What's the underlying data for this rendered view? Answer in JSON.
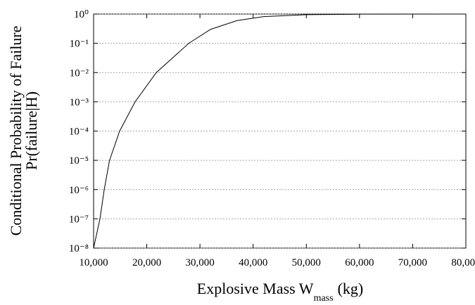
{
  "chart_data": {
    "type": "line",
    "ylabel": [
      "Conditional Probability of Failure",
      "Pr(failure|H)"
    ],
    "xlabel": [
      "Explosive Mass W",
      "mass",
      "(kg)"
    ],
    "x": [
      10000,
      11200,
      12000,
      13000,
      14900,
      17800,
      21800,
      27900,
      32000,
      37000,
      42000,
      50000,
      60000,
      80000
    ],
    "series": [
      {
        "color": "#000000",
        "values": [
          1e-08,
          1e-07,
          1e-06,
          1e-05,
          0.0001,
          0.001,
          0.01,
          0.1,
          0.3,
          0.6,
          0.82,
          0.95,
          0.99,
          1
        ]
      }
    ],
    "xlim": [
      10000,
      80000
    ],
    "xticks": [
      {
        "value": 10000,
        "label": "10,000"
      },
      {
        "value": 20000,
        "label": "20,000"
      },
      {
        "value": 30000,
        "label": "30,000"
      },
      {
        "value": 40000,
        "label": "40,000"
      },
      {
        "value": 50000,
        "label": "50,000"
      },
      {
        "value": 60000,
        "label": "60,000"
      },
      {
        "value": 70000,
        "label": "70,000"
      },
      {
        "value": 80000,
        "label": "80,000"
      }
    ],
    "ylim": [
      1e-08,
      1
    ],
    "yticks": [
      {
        "value": 1,
        "label": "10⁰"
      },
      {
        "value": 0.1,
        "label": "10⁻¹"
      },
      {
        "value": 0.01,
        "label": "10⁻²"
      },
      {
        "value": 0.001,
        "label": "10⁻³"
      },
      {
        "value": 0.0001,
        "label": "10⁻⁴"
      },
      {
        "value": 1e-05,
        "label": "10⁻⁵"
      },
      {
        "value": 1e-06,
        "label": "10⁻⁶"
      },
      {
        "value": 1e-07,
        "label": "10⁻⁷"
      },
      {
        "value": 1e-08,
        "label": "10⁻⁸"
      }
    ],
    "ylog": true,
    "grid": true
  }
}
